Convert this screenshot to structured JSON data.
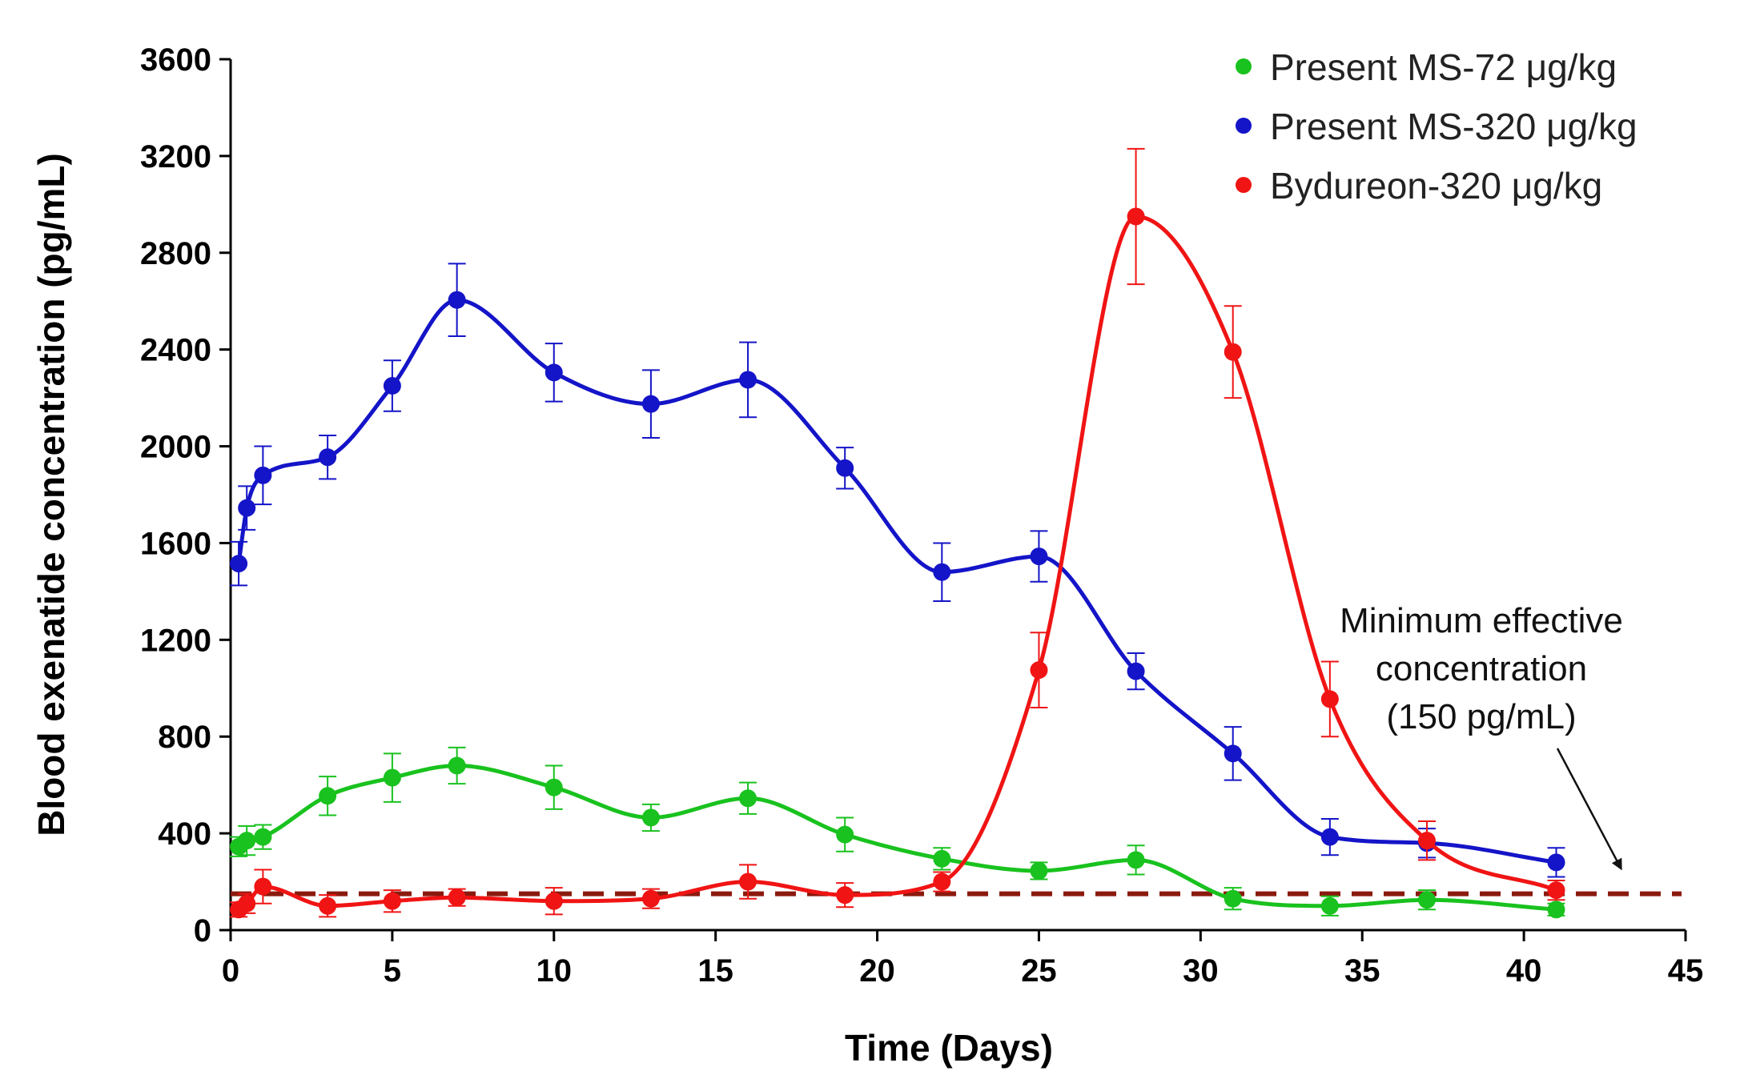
{
  "chart_data": {
    "type": "line",
    "title": "",
    "xlabel": "Time (Days)",
    "ylabel": "Blood exenatide concentration  (pg/mL)",
    "xlim": [
      0,
      45
    ],
    "ylim": [
      0,
      3600
    ],
    "xticks": [
      0,
      5,
      10,
      15,
      20,
      25,
      30,
      35,
      40,
      45
    ],
    "yticks": [
      0,
      400,
      800,
      1200,
      1600,
      2000,
      2400,
      2800,
      3200,
      3600
    ],
    "grid": false,
    "legend_position": "top-right",
    "series": [
      {
        "name": "Present MS-72 μg/kg",
        "color": "#19c21e",
        "x": [
          0.25,
          0.5,
          1,
          3,
          5,
          7,
          10,
          13,
          16,
          19,
          22,
          25,
          28,
          31,
          34,
          37,
          41
        ],
        "y": [
          345,
          370,
          385,
          555,
          630,
          680,
          590,
          465,
          545,
          395,
          295,
          245,
          290,
          130,
          100,
          125,
          85
        ],
        "err": [
          40,
          60,
          50,
          80,
          100,
          75,
          90,
          55,
          65,
          70,
          45,
          35,
          60,
          45,
          40,
          40,
          25
        ]
      },
      {
        "name": "Present MS-320 μg/kg",
        "color": "#1414c8",
        "x": [
          0.25,
          0.5,
          1,
          3,
          5,
          7,
          10,
          13,
          16,
          19,
          22,
          25,
          28,
          31,
          34,
          37,
          41
        ],
        "y": [
          1515,
          1745,
          1880,
          1955,
          2250,
          2605,
          2305,
          2175,
          2275,
          1910,
          1480,
          1545,
          1070,
          730,
          385,
          360,
          280
        ],
        "err": [
          90,
          90,
          120,
          90,
          105,
          150,
          120,
          140,
          155,
          85,
          120,
          105,
          75,
          110,
          75,
          60,
          60
        ]
      },
      {
        "name": "Bydureon-320 μg/kg",
        "color": "#f01414",
        "x": [
          0.25,
          0.5,
          1,
          3,
          5,
          7,
          10,
          13,
          16,
          19,
          22,
          25,
          28,
          31,
          34,
          37,
          41
        ],
        "y": [
          85,
          110,
          180,
          100,
          120,
          135,
          120,
          130,
          200,
          145,
          200,
          1075,
          2950,
          2390,
          955,
          370,
          165
        ],
        "err": [
          30,
          40,
          70,
          45,
          45,
          35,
          55,
          40,
          70,
          50,
          40,
          155,
          280,
          190,
          155,
          80,
          40
        ]
      }
    ],
    "reference_line": {
      "y": 150,
      "color": "#8b1a0e",
      "style": "dashed"
    },
    "annotation": {
      "lines": [
        "Minimum effective",
        "concentration",
        "(150 pg/mL)"
      ],
      "arrow_to": [
        43,
        150
      ]
    }
  }
}
